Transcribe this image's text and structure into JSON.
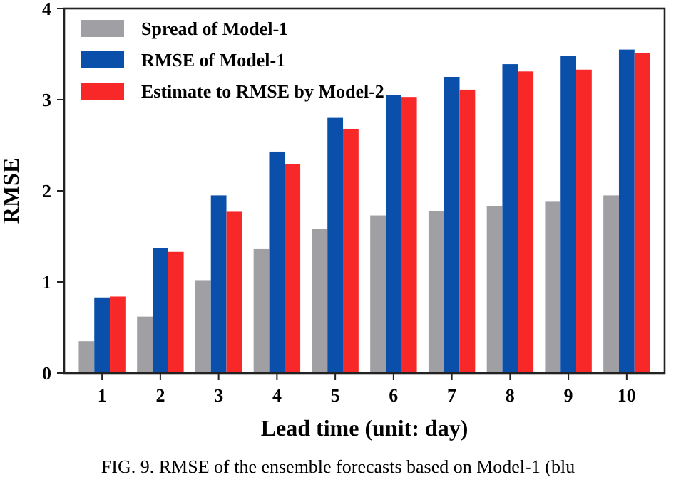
{
  "chart_data": {
    "type": "bar",
    "xlabel": "Lead time (unit: day)",
    "ylabel": "RMSE",
    "categories": [
      "1",
      "2",
      "3",
      "4",
      "5",
      "6",
      "7",
      "8",
      "9",
      "10"
    ],
    "series": [
      {
        "name": "Spread of Model-1",
        "color": "#a0a0a4",
        "values": [
          0.35,
          0.62,
          1.02,
          1.36,
          1.58,
          1.73,
          1.78,
          1.83,
          1.88,
          1.95
        ]
      },
      {
        "name": "RMSE of Model-1",
        "color": "#0a50aa",
        "values": [
          0.83,
          1.37,
          1.95,
          2.43,
          2.8,
          3.05,
          3.25,
          3.39,
          3.48,
          3.55
        ]
      },
      {
        "name": "Estimate to RMSE by Model-2",
        "color": "#f82828",
        "values": [
          0.84,
          1.33,
          1.77,
          2.29,
          2.68,
          3.03,
          3.11,
          3.31,
          3.33,
          3.51
        ]
      }
    ],
    "ylim": [
      0,
      4
    ],
    "yticks": [
      0,
      1,
      2,
      3,
      4
    ],
    "grid": false,
    "legend": "top left",
    "annotations": [
      "FIG. 9. RMSE of the ensemble forecasts based on Model-1 (blu"
    ]
  }
}
